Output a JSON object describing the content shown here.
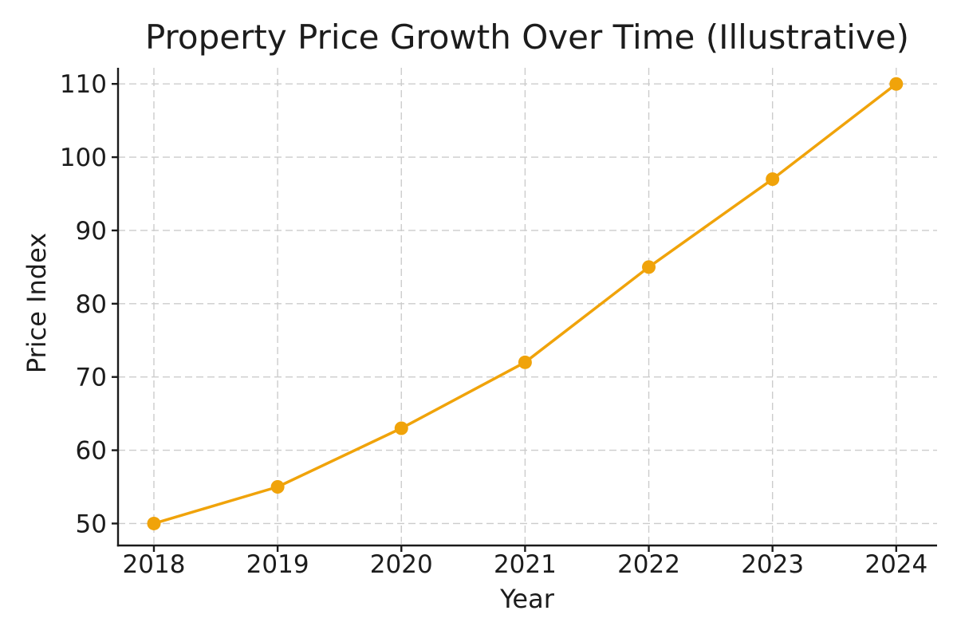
{
  "chart_data": {
    "type": "line",
    "title": "Property Price Growth Over Time (Illustrative)",
    "xlabel": "Year",
    "ylabel": "Price Index",
    "x": [
      2018,
      2019,
      2020,
      2021,
      2022,
      2023,
      2024
    ],
    "x_tick_labels": [
      "2018",
      "2019",
      "2020",
      "2021",
      "2022",
      "2023",
      "2024"
    ],
    "series": [
      {
        "name": "Price Index",
        "values": [
          50,
          55,
          63,
          72,
          85,
          97,
          110
        ]
      }
    ],
    "y_ticks": [
      50,
      60,
      70,
      80,
      90,
      100,
      110
    ],
    "xlim": [
      2017.71,
      2024.33
    ],
    "ylim": [
      47,
      112.2
    ],
    "grid": true,
    "grid_linestyle": "dashed",
    "legend_position": "none",
    "line_color": "#F0A30A",
    "marker": "circle",
    "marker_radius": 8.5,
    "line_width": 3.5,
    "grid_color": "#cccccc",
    "spine_color": "#1a1a1a",
    "text_color": "#1c1c1c",
    "background_color": "#ffffff"
  }
}
